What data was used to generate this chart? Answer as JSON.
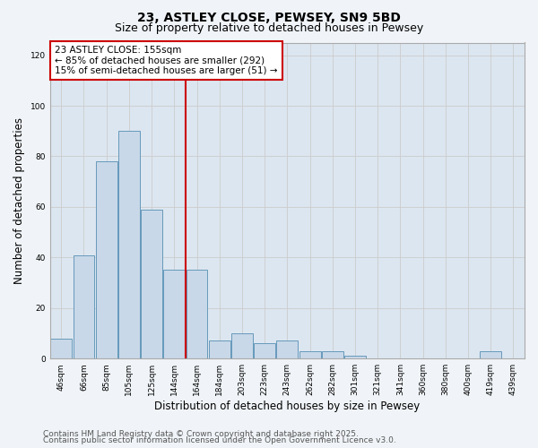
{
  "title1": "23, ASTLEY CLOSE, PEWSEY, SN9 5BD",
  "title2": "Size of property relative to detached houses in Pewsey",
  "xlabel": "Distribution of detached houses by size in Pewsey",
  "ylabel": "Number of detached properties",
  "categories": [
    "46sqm",
    "66sqm",
    "85sqm",
    "105sqm",
    "125sqm",
    "144sqm",
    "164sqm",
    "184sqm",
    "203sqm",
    "223sqm",
    "243sqm",
    "262sqm",
    "282sqm",
    "301sqm",
    "321sqm",
    "341sqm",
    "360sqm",
    "380sqm",
    "400sqm",
    "419sqm",
    "439sqm"
  ],
  "values": [
    8,
    41,
    78,
    90,
    59,
    35,
    35,
    7,
    10,
    6,
    7,
    3,
    3,
    1,
    0,
    0,
    0,
    0,
    0,
    3,
    0
  ],
  "bar_color": "#c8d8e8",
  "bar_edge_color": "#6699bb",
  "vline_x": 5.5,
  "vline_color": "#cc0000",
  "annotation_text": "23 ASTLEY CLOSE: 155sqm\n← 85% of detached houses are smaller (292)\n15% of semi-detached houses are larger (51) →",
  "annotation_box_color": "#ffffff",
  "annotation_box_edge": "#cc0000",
  "ylim": [
    0,
    125
  ],
  "yticks": [
    0,
    20,
    40,
    60,
    80,
    100,
    120
  ],
  "grid_color": "#cccccc",
  "background_color": "#dce6f0",
  "fig_background_color": "#f0f4f8",
  "footer1": "Contains HM Land Registry data © Crown copyright and database right 2025.",
  "footer2": "Contains public sector information licensed under the Open Government Licence v3.0.",
  "title_fontsize": 10,
  "subtitle_fontsize": 9,
  "tick_fontsize": 6.5,
  "label_fontsize": 8.5,
  "annotation_fontsize": 7.5,
  "footer_fontsize": 6.5
}
